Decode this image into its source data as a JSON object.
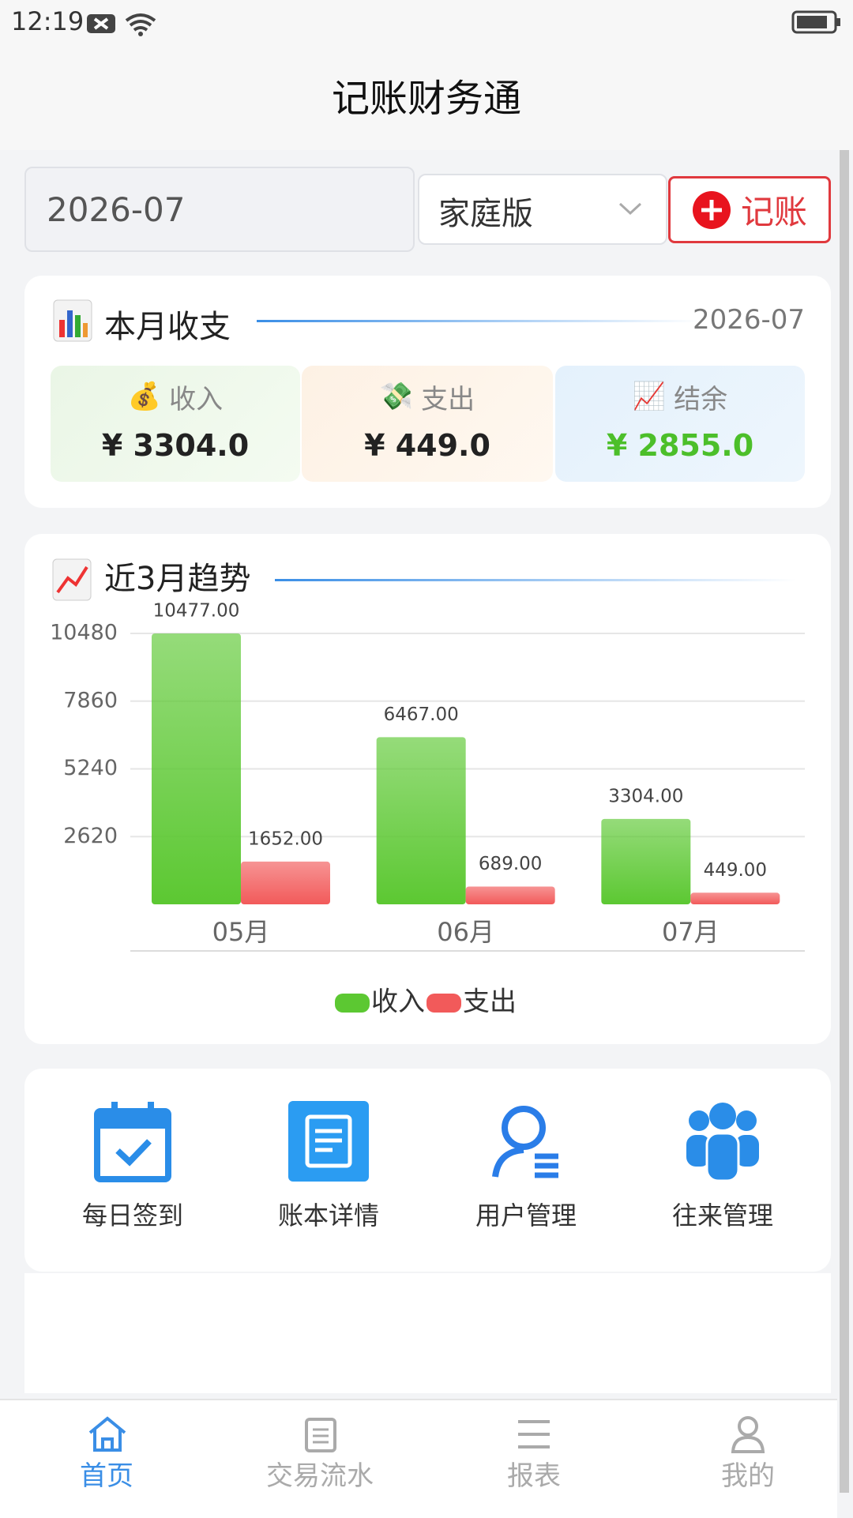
{
  "status_bar": {
    "time": "12:19"
  },
  "header": {
    "title": "记账财务通"
  },
  "controls": {
    "month": "2026-07",
    "book": "家庭版",
    "add_button": "记账"
  },
  "summary": {
    "title": "本月收支",
    "month": "2026-07",
    "items": [
      {
        "label": "收入",
        "amount": "¥ 3304.0"
      },
      {
        "label": "支出",
        "amount": "¥ 449.0"
      },
      {
        "label": "结余",
        "amount": "¥ 2855.0"
      }
    ]
  },
  "chart_data": {
    "type": "bar",
    "title": "近3月趋势",
    "categories": [
      "05月",
      "06月",
      "07月"
    ],
    "series": [
      {
        "name": "收入",
        "color": "#5cc832",
        "values": [
          10477,
          6467,
          3304
        ],
        "value_labels": [
          "10477.00",
          "6467.00",
          "3304.00"
        ]
      },
      {
        "name": "支出",
        "color": "#f25a5a",
        "values": [
          1652,
          689,
          449
        ],
        "value_labels": [
          "1652.00",
          "689.00",
          "449.00"
        ]
      }
    ],
    "ylim": [
      0,
      10480
    ],
    "yticks": [
      2620,
      5240,
      7860,
      10480
    ],
    "grid": true,
    "legend": "bottom"
  },
  "menu": [
    "每日签到",
    "账本详情",
    "用户管理",
    "往来管理"
  ],
  "tabbar": [
    "首页",
    "交易流水",
    "报表",
    "我的"
  ]
}
